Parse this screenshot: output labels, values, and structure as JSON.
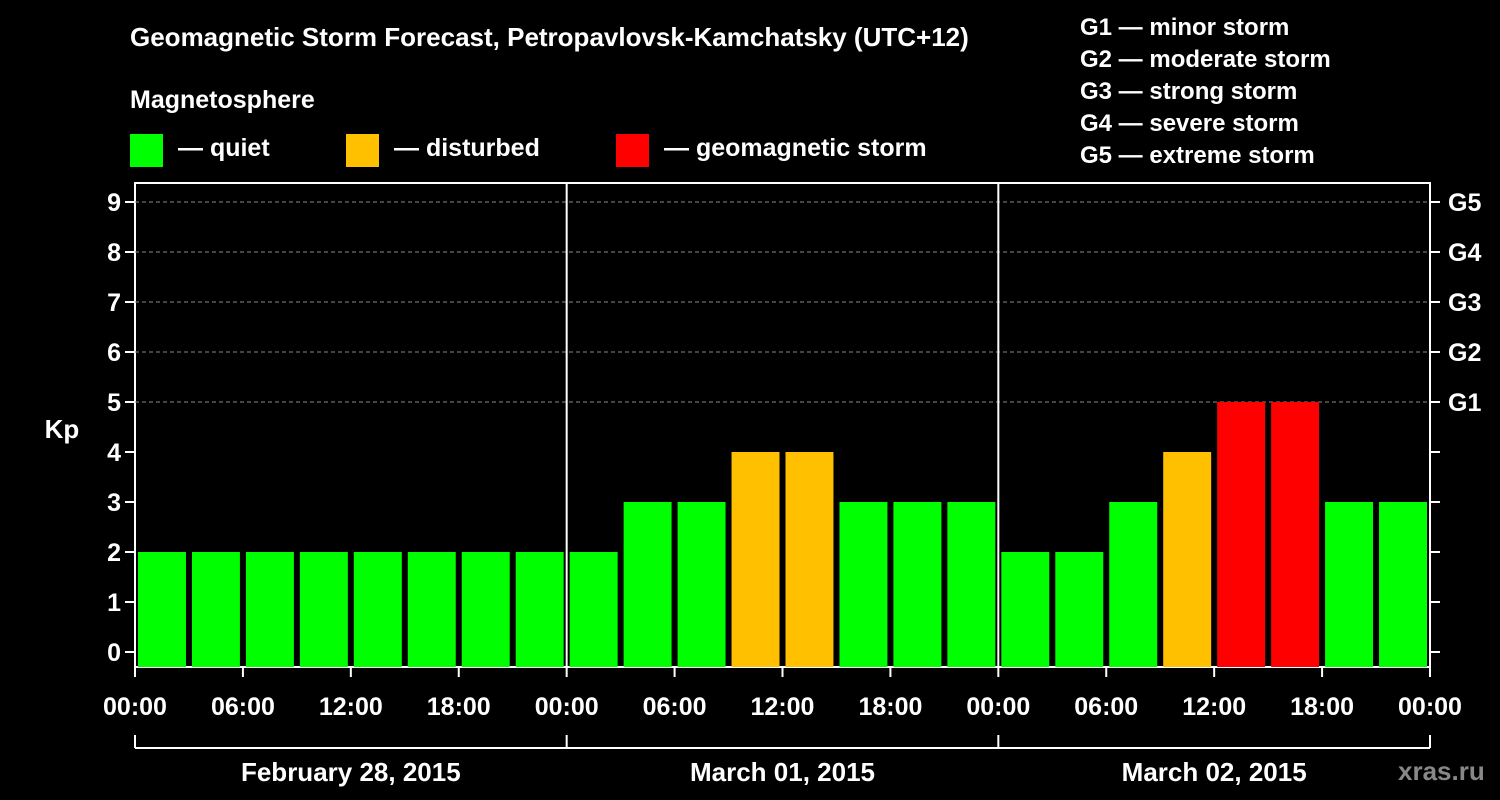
{
  "chart_data": {
    "type": "bar",
    "title": "Geomagnetic Storm Forecast, Petropavlovsk-Kamchatsky (UTC+12)",
    "ylabel": "Kp",
    "ylim": [
      0,
      9
    ],
    "yticks": [
      "0",
      "1",
      "2",
      "3",
      "4",
      "5",
      "6",
      "7",
      "8",
      "9"
    ],
    "right_axis": [
      {
        "kp": 5,
        "label": "G1"
      },
      {
        "kp": 6,
        "label": "G2"
      },
      {
        "kp": 7,
        "label": "G3"
      },
      {
        "kp": 8,
        "label": "G4"
      },
      {
        "kp": 9,
        "label": "G5"
      }
    ],
    "xticks": [
      "00:00",
      "06:00",
      "12:00",
      "18:00",
      "00:00",
      "06:00",
      "12:00",
      "18:00",
      "00:00",
      "06:00",
      "12:00",
      "18:00",
      "00:00"
    ],
    "days": [
      "February 28, 2015",
      "March 01, 2015",
      "March 02, 2015"
    ],
    "values": [
      2,
      2,
      2,
      2,
      2,
      2,
      2,
      2,
      2,
      3,
      3,
      4,
      4,
      3,
      3,
      3,
      2,
      2,
      3,
      4,
      5,
      5,
      3,
      3
    ],
    "status_colors": {
      "quiet": "#00ff00",
      "disturbed": "#ffc000",
      "storm": "#ff0000"
    },
    "grid": true
  },
  "legend": {
    "heading": "Magnetosphere",
    "items": [
      {
        "label": "— quiet",
        "color": "#00ff00"
      },
      {
        "label": "— disturbed",
        "color": "#ffc000"
      },
      {
        "label": "— geomagnetic storm",
        "color": "#ff0000"
      }
    ]
  },
  "storm_levels": [
    "G1 — minor storm",
    "G2 — moderate storm",
    "G3 — strong storm",
    "G4 — severe storm",
    "G5 — extreme storm"
  ],
  "watermark": "xras.ru"
}
